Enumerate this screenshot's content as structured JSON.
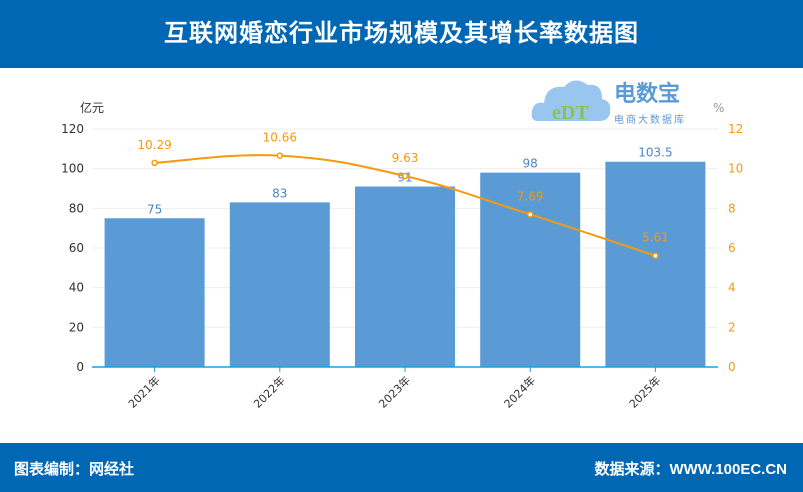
{
  "header": {
    "title": "互联网婚恋行业市场规模及其增长率数据图"
  },
  "footer": {
    "left": "图表编制：网经社",
    "right": "数据来源：WWW.100EC.CN"
  },
  "watermark": {
    "brand": "电数宝",
    "tagline": "电商大数据库",
    "logo_text": "eDT"
  },
  "colors": {
    "header": "#0067b5",
    "bar": "#5b9bd5",
    "line": "#f59a0c"
  },
  "chart_data": {
    "type": "bar+line",
    "categories": [
      "2021年",
      "2022年",
      "2023年",
      "2024年",
      "2025年"
    ],
    "series": [
      {
        "axis": "left",
        "type": "bar",
        "values": [
          75,
          83,
          91,
          98,
          103.5
        ],
        "labels": [
          "75",
          "83",
          "91",
          "98",
          "103.5"
        ]
      },
      {
        "axis": "right",
        "type": "line",
        "values": [
          10.29,
          10.66,
          9.63,
          7.69,
          5.61
        ],
        "labels": [
          "10.29",
          "10.66",
          "9.63",
          "7.69",
          "5.61"
        ]
      }
    ],
    "ylabel_left": "亿元",
    "ylabel_right": "%",
    "ylim_left": [
      0,
      120
    ],
    "yticks_left": [
      "0",
      "20",
      "40",
      "60",
      "80",
      "100",
      "120"
    ],
    "ylim_right": [
      0,
      12
    ],
    "yticks_right": [
      "0",
      "2",
      "4",
      "6",
      "8",
      "10",
      "12"
    ],
    "grid": true
  }
}
